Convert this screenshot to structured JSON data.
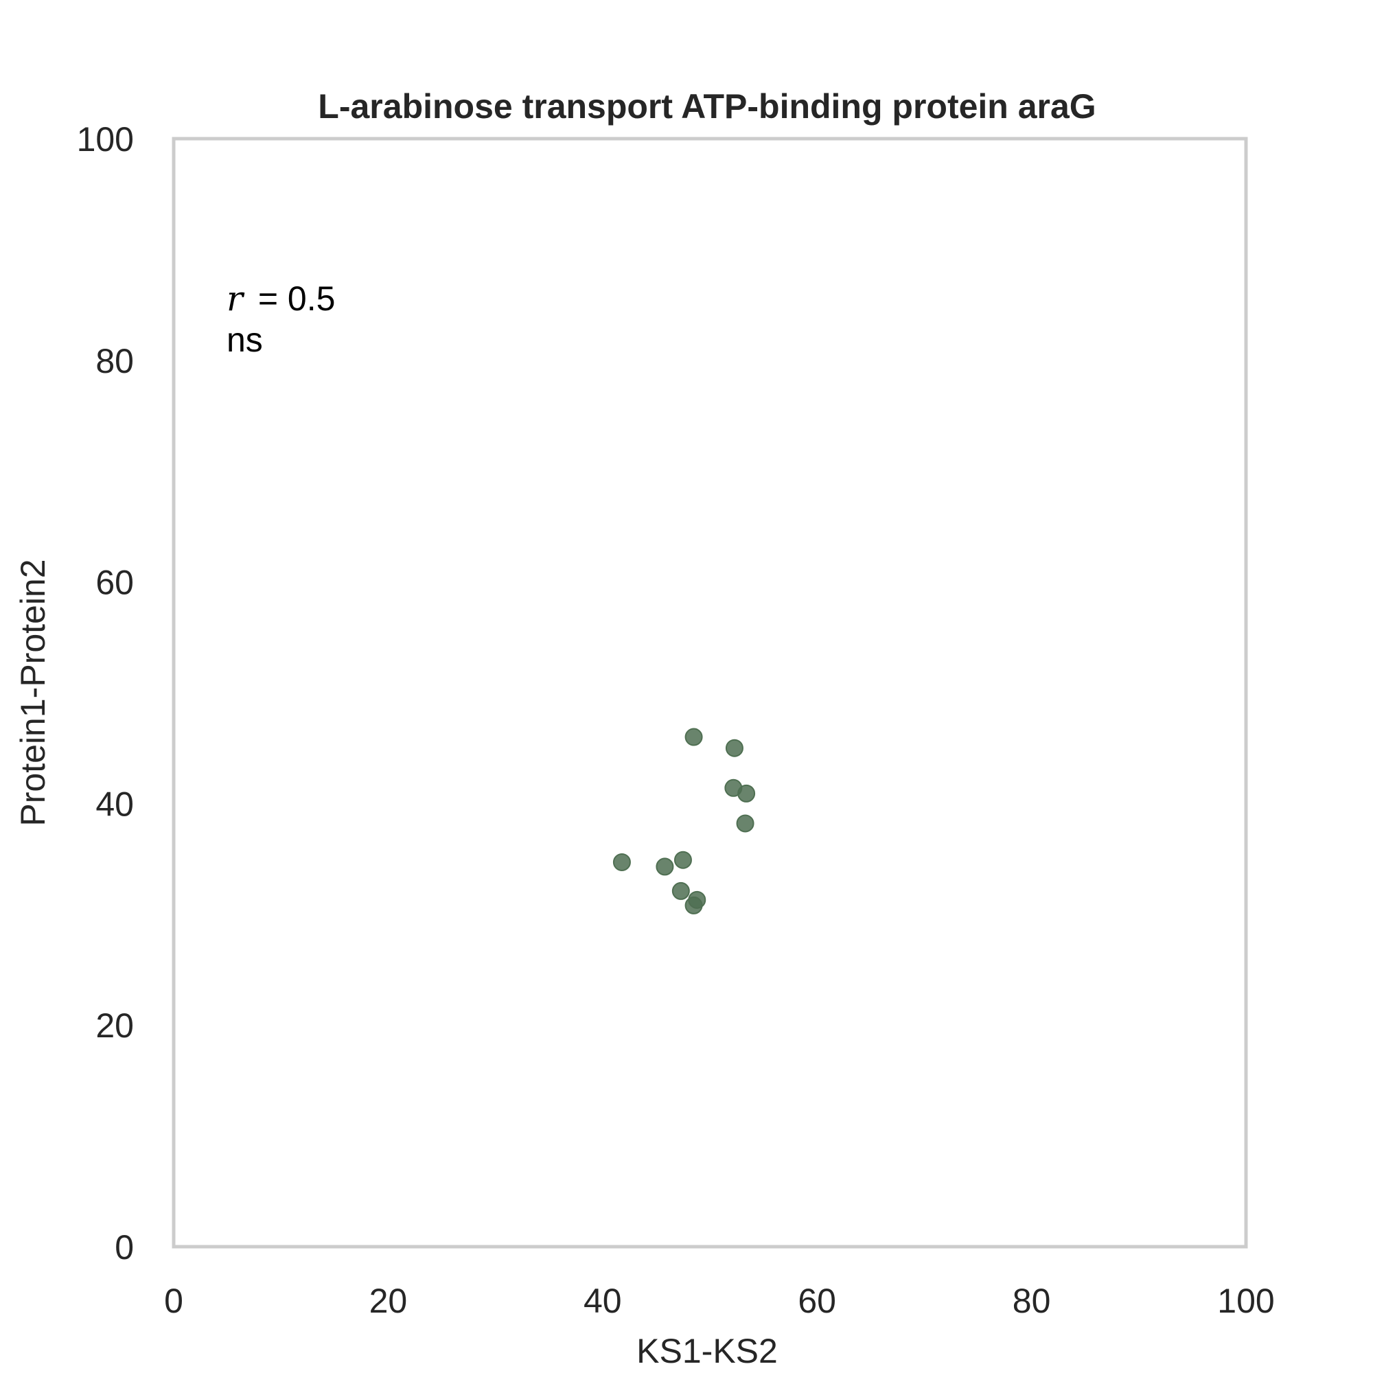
{
  "chart_data": {
    "type": "scatter",
    "title": "L-arabinose transport ATP-binding protein araG",
    "xlabel": "KS1-KS2",
    "ylabel": "Protein1-Protein2",
    "xlim": [
      0,
      100
    ],
    "ylim": [
      0,
      100
    ],
    "xticks": [
      "0",
      "20",
      "40",
      "60",
      "80",
      "100"
    ],
    "yticks": [
      "0",
      "20",
      "40",
      "60",
      "80",
      "100"
    ],
    "grid": false,
    "annotation": {
      "r_symbol": "r",
      "r_equals": "= 0.5",
      "significance": "ns"
    },
    "colors": {
      "points": "#4f6f52",
      "frame": "#cccccc"
    },
    "points": [
      {
        "x": 48.5,
        "y": 46.0
      },
      {
        "x": 52.3,
        "y": 45.0
      },
      {
        "x": 52.2,
        "y": 41.4
      },
      {
        "x": 53.4,
        "y": 40.9
      },
      {
        "x": 53.3,
        "y": 38.2
      },
      {
        "x": 41.8,
        "y": 34.7
      },
      {
        "x": 45.8,
        "y": 34.3
      },
      {
        "x": 47.5,
        "y": 34.9
      },
      {
        "x": 47.3,
        "y": 32.1
      },
      {
        "x": 48.8,
        "y": 31.3
      },
      {
        "x": 48.5,
        "y": 30.8
      }
    ]
  }
}
